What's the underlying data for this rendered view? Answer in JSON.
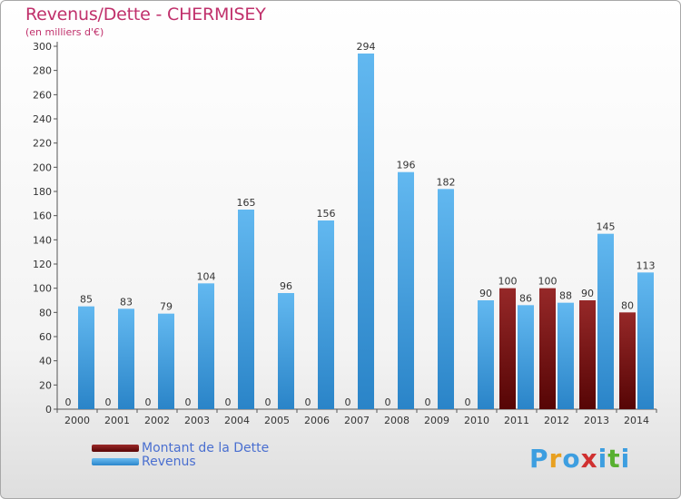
{
  "title": "Revenus/Dette - CHERMISEY",
  "subtitle": "(en milliers d'€)",
  "colors": {
    "debt": "#6b0a0a",
    "revenue": "#3d9ee0",
    "title": "#c0306b",
    "legend_text": "#4a6fd0"
  },
  "chart_data": {
    "type": "bar",
    "categories": [
      "2000",
      "2001",
      "2002",
      "2003",
      "2004",
      "2005",
      "2006",
      "2007",
      "2008",
      "2009",
      "2010",
      "2011",
      "2012",
      "2013",
      "2014"
    ],
    "series": [
      {
        "name": "Montant de la Dette",
        "values": [
          0,
          0,
          0,
          0,
          0,
          0,
          0,
          0,
          0,
          0,
          0,
          100,
          100,
          90,
          80
        ]
      },
      {
        "name": "Revenus",
        "values": [
          85,
          83,
          79,
          104,
          165,
          96,
          156,
          294,
          196,
          182,
          90,
          86,
          88,
          145,
          113
        ]
      }
    ],
    "ylim": [
      0,
      300
    ],
    "yticks": [
      0,
      20,
      40,
      60,
      80,
      100,
      120,
      140,
      160,
      180,
      200,
      220,
      240,
      260,
      280,
      300
    ],
    "grid": false,
    "legend_position": "bottom-left"
  },
  "legend": {
    "debt_label": "Montant de la Dette",
    "revenue_label": "Revenus"
  },
  "logo": {
    "letters": [
      "P",
      "r",
      "o",
      "x",
      "i",
      "t",
      "i"
    ],
    "colors": [
      "#3d9ee0",
      "#e8a020",
      "#3d9ee0",
      "#d03030",
      "#3d9ee0",
      "#58b030",
      "#3d9ee0"
    ]
  }
}
